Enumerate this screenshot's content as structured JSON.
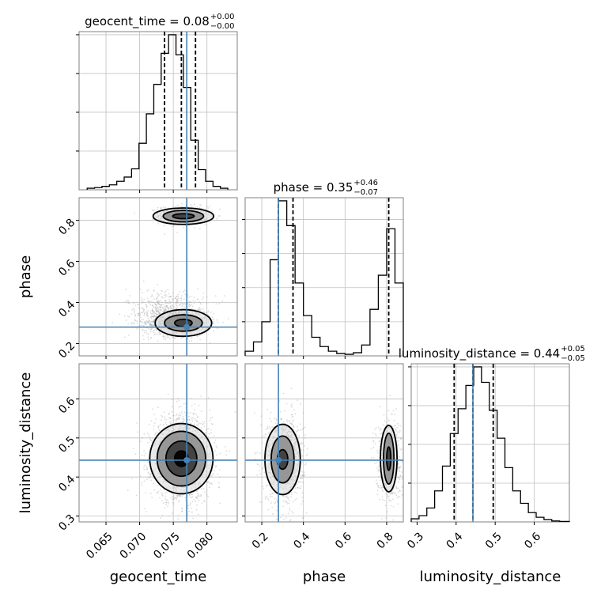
{
  "colors": {
    "truth": "#4682b4",
    "line": "#000000",
    "grid": "#c0c0c0",
    "scatter": "#9a9a9a"
  },
  "chart_data": {
    "type": "corner",
    "parameters": [
      "geocent_time",
      "phase",
      "luminosity_distance"
    ],
    "truths": {
      "geocent_time": 0.077,
      "phase": 0.28,
      "luminosity_distance": 0.443
    },
    "grid": true,
    "histograms": [
      {
        "param": "geocent_time",
        "title": "geocent_time = 0.08",
        "title_plus": "+0.00",
        "title_minus": "−0.00",
        "quantiles": [
          0.0737,
          0.0762,
          0.0783
        ],
        "xlim": [
          0.061,
          0.0845
        ],
        "bin_edges": [
          0.0622,
          0.0633,
          0.0644,
          0.0655,
          0.0666,
          0.0677,
          0.0688,
          0.0699,
          0.071,
          0.0721,
          0.0732,
          0.0743,
          0.0754,
          0.0765,
          0.0776,
          0.0787,
          0.0798,
          0.0809,
          0.082,
          0.0831
        ],
        "counts": [
          0.01,
          0.014,
          0.022,
          0.032,
          0.055,
          0.082,
          0.135,
          0.3,
          0.49,
          0.68,
          0.88,
          1.0,
          0.87,
          0.66,
          0.32,
          0.13,
          0.055,
          0.022,
          0.01
        ],
        "yticks": [
          0.25,
          0.5,
          0.75,
          1.0
        ]
      },
      {
        "param": "phase",
        "title": "phase = 0.35",
        "title_plus": "+0.46",
        "title_minus": "−0.07",
        "quantiles": [
          0.28,
          0.35,
          0.81
        ],
        "xlim": [
          0.12,
          0.88
        ],
        "bin_edges": [
          0.12,
          0.16,
          0.2,
          0.24,
          0.28,
          0.32,
          0.36,
          0.4,
          0.44,
          0.48,
          0.52,
          0.56,
          0.6,
          0.64,
          0.68,
          0.72,
          0.76,
          0.8,
          0.84,
          0.88
        ],
        "counts": [
          0.03,
          0.09,
          0.22,
          0.62,
          1.0,
          0.84,
          0.47,
          0.26,
          0.12,
          0.06,
          0.03,
          0.015,
          0.01,
          0.02,
          0.07,
          0.3,
          0.52,
          0.82,
          0.47
        ],
        "yticks": [
          0.22,
          0.44,
          0.66,
          0.88
        ]
      },
      {
        "param": "luminosity_distance",
        "title": "luminosity_distance = 0.44",
        "title_plus": "+0.05",
        "title_minus": "−0.05",
        "quantiles": [
          0.395,
          0.443,
          0.495
        ],
        "xlim": [
          0.285,
          0.69
        ],
        "bin_edges": [
          0.285,
          0.305,
          0.325,
          0.345,
          0.365,
          0.385,
          0.405,
          0.425,
          0.445,
          0.465,
          0.485,
          0.505,
          0.525,
          0.545,
          0.565,
          0.585,
          0.605,
          0.625,
          0.645,
          0.665,
          0.69
        ],
        "counts": [
          0.02,
          0.04,
          0.09,
          0.2,
          0.36,
          0.57,
          0.73,
          0.88,
          1.0,
          0.9,
          0.72,
          0.54,
          0.35,
          0.2,
          0.12,
          0.06,
          0.03,
          0.015,
          0.006,
          0.003
        ],
        "yticks": [
          0.25,
          0.5,
          0.75,
          1.0
        ]
      }
    ],
    "scatter_panels": [
      {
        "x": "geocent_time",
        "y": "phase",
        "xlim": [
          0.061,
          0.0845
        ],
        "ylim": [
          0.14,
          0.91
        ],
        "clusters": [
          {
            "center": [
              0.0765,
              0.825
            ],
            "spread": [
              0.0018,
              0.022
            ],
            "count": 700
          },
          {
            "center": [
              0.0755,
              0.305
            ],
            "spread": [
              0.0024,
              0.035
            ],
            "count": 1100
          },
          {
            "center": [
              0.074,
              0.38
            ],
            "spread": [
              0.003,
              0.045
            ],
            "count": 350
          }
        ],
        "contours": [
          {
            "center": [
              0.0765,
              0.82
            ],
            "rx": [
              0.0016,
              0.003,
              0.0045
            ],
            "ry": [
              0.012,
              0.028,
              0.04
            ]
          },
          {
            "center": [
              0.0765,
              0.3
            ],
            "rx": [
              0.0013,
              0.0028,
              0.0042
            ],
            "ry": [
              0.018,
              0.04,
              0.065
            ]
          }
        ]
      },
      {
        "x": "geocent_time",
        "y": "luminosity_distance",
        "xlim": [
          0.061,
          0.0845
        ],
        "ylim": [
          0.285,
          0.69
        ],
        "clusters": [
          {
            "center": [
              0.0762,
              0.447
            ],
            "spread": [
              0.0022,
              0.055
            ],
            "count": 1800
          }
        ],
        "contours": [
          {
            "center": [
              0.0762,
              0.447
            ],
            "rx": [
              0.001,
              0.0023,
              0.0036,
              0.0047
            ],
            "ry": [
              0.02,
              0.045,
              0.07,
              0.09
            ]
          }
        ]
      },
      {
        "x": "phase",
        "y": "luminosity_distance",
        "xlim": [
          0.12,
          0.88
        ],
        "ylim": [
          0.285,
          0.69
        ],
        "clusters": [
          {
            "center": [
              0.31,
              0.445
            ],
            "spread": [
              0.045,
              0.055
            ],
            "count": 1100
          },
          {
            "center": [
              0.81,
              0.447
            ],
            "spread": [
              0.03,
              0.055
            ],
            "count": 550
          }
        ],
        "contours": [
          {
            "center": [
              0.3,
              0.445
            ],
            "rx": [
              0.025,
              0.055,
              0.085
            ],
            "ry": [
              0.025,
              0.06,
              0.09
            ]
          },
          {
            "center": [
              0.81,
              0.447
            ],
            "rx": [
              0.01,
              0.025,
              0.04
            ],
            "ry": [
              0.03,
              0.065,
              0.085
            ]
          }
        ]
      }
    ],
    "tick_labels": {
      "geocent_time": [
        "0.065",
        "0.070",
        "0.075",
        "0.080"
      ],
      "phase": [
        "0.2",
        "0.4",
        "0.6",
        "0.8"
      ],
      "luminosity_distance": [
        "0.3",
        "0.4",
        "0.5",
        "0.6"
      ]
    },
    "axis_labels": {
      "x": [
        "geocent_time",
        "phase",
        "luminosity_distance"
      ],
      "y": [
        "phase",
        "luminosity_distance"
      ]
    }
  }
}
